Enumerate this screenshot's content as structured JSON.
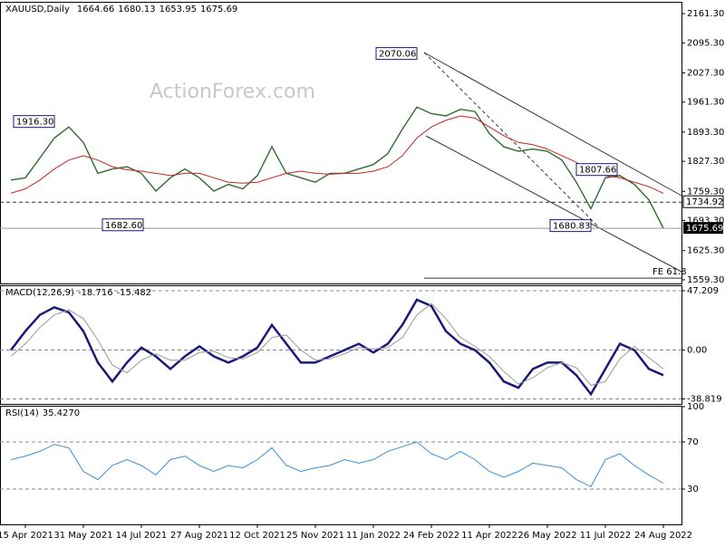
{
  "chart_data": [
    {
      "type": "line",
      "title": "XAUUSD,Daily",
      "ohlc": [
        1664.66,
        1680.13,
        1653.95,
        1675.69
      ],
      "watermark": "ActionForex.com",
      "ylim": [
        1551,
        2186
      ],
      "yticks": [
        {
          "value": 2161.3,
          "label": "2161.30"
        },
        {
          "value": 2095.3,
          "label": "2095.30"
        },
        {
          "value": 2027.3,
          "label": "2027.30"
        },
        {
          "value": 1961.3,
          "label": "1961.30"
        },
        {
          "value": 1893.3,
          "label": "1893.30"
        },
        {
          "value": 1827.3,
          "label": "1827.30"
        },
        {
          "value": 1759.3,
          "label": "1759.30"
        },
        {
          "value": 1693.3,
          "label": "1693.30"
        },
        {
          "value": 1625.3,
          "label": "1625.30"
        },
        {
          "value": 1559.3,
          "label": "1559.30"
        }
      ],
      "series": [
        {
          "color": "#2d6e2d",
          "values": [
            1785,
            1790,
            1835,
            1880,
            1905,
            1870,
            1800,
            1810,
            1815,
            1800,
            1760,
            1790,
            1810,
            1790,
            1760,
            1775,
            1765,
            1795,
            1860,
            1800,
            1790,
            1780,
            1800,
            1800,
            1810,
            1820,
            1845,
            1900,
            1950,
            1935,
            1930,
            1945,
            1940,
            1890,
            1860,
            1850,
            1855,
            1850,
            1830,
            1780,
            1720,
            1790,
            1795,
            1775,
            1740,
            1676
          ]
        },
        {
          "color": "#cc2222",
          "values": [
            1755,
            1765,
            1785,
            1810,
            1830,
            1840,
            1830,
            1815,
            1808,
            1805,
            1800,
            1795,
            1800,
            1800,
            1790,
            1780,
            1778,
            1780,
            1790,
            1800,
            1805,
            1800,
            1798,
            1800,
            1800,
            1805,
            1815,
            1840,
            1880,
            1905,
            1920,
            1930,
            1925,
            1905,
            1885,
            1870,
            1865,
            1855,
            1840,
            1825,
            1805,
            1795,
            1790,
            1780,
            1770,
            1755
          ]
        }
      ],
      "annotations": [
        2070.06,
        {
          "value": 1916.3,
          "label": "1916.30"
        },
        {
          "value": 1682.6,
          "label": "1682.60"
        },
        1807.66,
        1680.83
      ],
      "pivot_level": 1734.92,
      "last_price": 1675.69,
      "fe_level": {
        "value": 1563,
        "label": "FE 61.8"
      }
    },
    {
      "type": "line",
      "title": "MACD(12,26,9)",
      "readings": [
        -18.716,
        -15.482
      ],
      "ylim": [
        -42.8,
        50.8
      ],
      "yticks": [
        47.209,
        {
          "value": 0,
          "label": "0.00"
        },
        -38.819
      ],
      "series": [
        {
          "color": "#1a1a7a",
          "values": [
            0,
            15,
            28,
            34,
            30,
            15,
            -10,
            -25,
            -10,
            2,
            -5,
            -15,
            -5,
            3,
            -5,
            -10,
            -5,
            2,
            20,
            5,
            -10,
            -10,
            -5,
            0,
            5,
            -2,
            5,
            20,
            40,
            35,
            15,
            5,
            0,
            -10,
            -25,
            -30,
            -15,
            -10,
            -10,
            -20,
            -35,
            -15,
            5,
            0,
            -15,
            -20
          ]
        },
        {
          "color": "#9a9a9a",
          "values": [
            -5,
            5,
            18,
            28,
            32,
            25,
            8,
            -12,
            -18,
            -8,
            -3,
            -8,
            -8,
            -2,
            -1,
            -6,
            -7,
            -2,
            10,
            12,
            0,
            -8,
            -7,
            -3,
            2,
            1,
            2,
            10,
            28,
            37,
            25,
            10,
            3,
            -5,
            -17,
            -27,
            -22,
            -14,
            -10,
            -14,
            -28,
            -25,
            -7,
            3,
            -6,
            -15
          ]
        }
      ]
    },
    {
      "type": "line",
      "title": "RSI(14)",
      "reading": {
        "value": 35.427,
        "label": "35.4270"
      },
      "ylim": [
        0,
        100
      ],
      "yticks": [
        100,
        70,
        30
      ],
      "series": [
        {
          "color": "#3a8fd6",
          "values": [
            55,
            58,
            62,
            68,
            65,
            45,
            38,
            50,
            55,
            50,
            42,
            55,
            58,
            50,
            45,
            50,
            48,
            55,
            65,
            50,
            45,
            48,
            50,
            55,
            52,
            55,
            62,
            66,
            70,
            60,
            55,
            62,
            55,
            45,
            40,
            45,
            52,
            50,
            48,
            38,
            32,
            55,
            60,
            50,
            42,
            35
          ]
        }
      ],
      "xlim": [
        -0.75,
        46.25
      ],
      "xticks": [
        {
          "value": 1,
          "label": "15 Apr 2021"
        },
        {
          "value": 5,
          "label": "31 May 2021"
        },
        {
          "value": 9,
          "label": "14 Jul 2021"
        },
        {
          "value": 13,
          "label": "27 Aug 2021"
        },
        {
          "value": 17,
          "label": "12 Oct 2021"
        },
        {
          "value": 21,
          "label": "25 Nov 2021"
        },
        {
          "value": 25,
          "label": "11 Jan 2022"
        },
        {
          "value": 29,
          "label": "24 Feb 2022"
        },
        {
          "value": 33,
          "label": "11 Apr 2022"
        },
        {
          "value": 37,
          "label": "26 May 2022"
        },
        {
          "value": 41,
          "label": "11 Jul 2022"
        },
        {
          "value": 45,
          "label": "24 Aug 2022"
        }
      ]
    }
  ]
}
